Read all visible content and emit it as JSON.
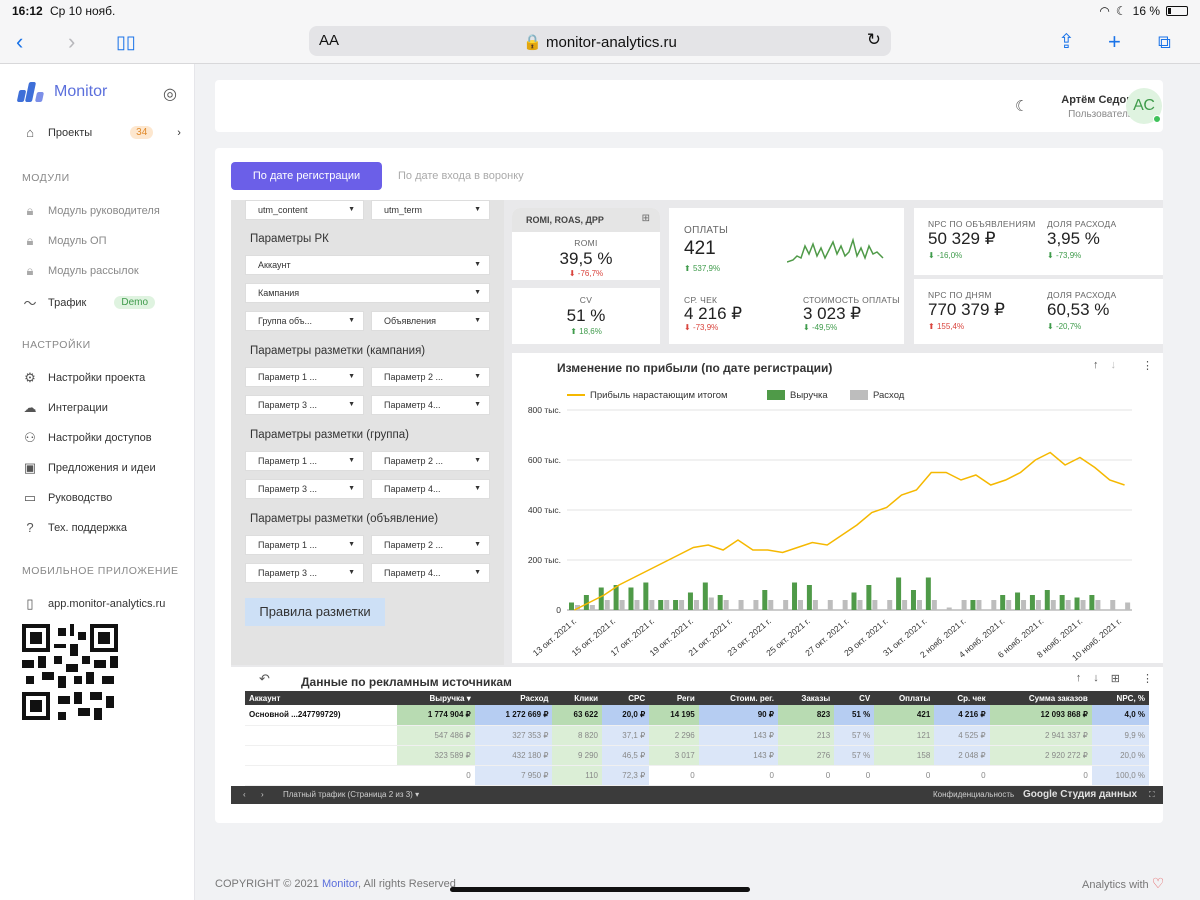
{
  "status": {
    "time": "16:12",
    "date": "Ср 10 нояб.",
    "battery": "16 %"
  },
  "browser": {
    "aa": "AA",
    "url": "monitor-analytics.ru"
  },
  "sidebar": {
    "logo": "Monitor",
    "projects": {
      "label": "Проекты",
      "count": "34"
    },
    "modules_title": "МОДУЛИ",
    "modules": [
      {
        "label": "Модуль руководителя"
      },
      {
        "label": "Модуль ОП"
      },
      {
        "label": "Модуль рассылок"
      },
      {
        "label": "Трафик",
        "badge": "Demo"
      }
    ],
    "settings_title": "НАСТРОЙКИ",
    "settings": [
      {
        "label": "Настройки проекта"
      },
      {
        "label": "Интеграции"
      },
      {
        "label": "Настройки доступов"
      },
      {
        "label": "Предложения и идеи"
      },
      {
        "label": "Руководство"
      },
      {
        "label": "Тех. поддержка"
      }
    ],
    "mobile_title": "МОБИЛЬНОЕ ПРИЛОЖЕНИЕ",
    "mobile_link": "app.monitor-analytics.ru"
  },
  "header": {
    "user_name": "Артём Седов",
    "user_role": "Пользователь",
    "avatar": "АС"
  },
  "tabs": {
    "active": "По дате регистрации",
    "inactive": "По дате входа в воронку"
  },
  "filters": {
    "top": [
      "utm_content",
      "utm_term"
    ],
    "rk_title": "Параметры РК",
    "rk": [
      "Аккаунт",
      "Кампания",
      "Группа объ...",
      "Объявления"
    ],
    "camp_title": "Параметры разметки (кампания)",
    "group_title": "Параметры разметки (группа)",
    "ad_title": "Параметры разметки (объявление)",
    "params": [
      "Параметр 1 ...",
      "Параметр 2 ...",
      "Параметр 3 ...",
      "Параметр 4..."
    ],
    "rules_button": "Правила разметки"
  },
  "kpis": {
    "romi_head": "ROMI, ROAS, ДРР",
    "romi": {
      "label": "ROMI",
      "value": "39,5 %",
      "delta": "-76,7%"
    },
    "cv": {
      "label": "CV",
      "value": "51 %",
      "delta": "18,6%"
    },
    "payments": {
      "label": "ОПЛАТЫ",
      "value": "421",
      "delta": "537,9%"
    },
    "avg_check": {
      "label": "СР. ЧЕК",
      "value": "4 216 ₽",
      "delta": "-73,9%"
    },
    "payment_cost": {
      "label": "СТОИМОСТЬ ОПЛАТЫ",
      "value": "3 023 ₽",
      "delta": "-49,5%"
    },
    "npc_ads": {
      "label": "NPC ПО ОБЪЯВЛЕНИЯМ",
      "value": "50 329 ₽",
      "delta": "-16,0%"
    },
    "share1": {
      "label": "ДОЛЯ РАСХОДА",
      "value": "3,95 %",
      "delta": "-73,9%"
    },
    "npc_days": {
      "label": "NPC ПО ДНЯМ",
      "value": "770 379 ₽",
      "delta": "155,4%"
    },
    "share2": {
      "label": "ДОЛЯ РАСХОДА",
      "value": "60,53 %",
      "delta": "-20,7%"
    }
  },
  "chart_data": {
    "type": "bar",
    "title": "Изменение по прибыли (по дате регистрации)",
    "legend": [
      "Прибыль нарастающим итогом",
      "Выручка",
      "Расход"
    ],
    "y_ticks": [
      "800 тыс.",
      "600 тыс.",
      "400 тыс.",
      "200 тыс.",
      "0"
    ],
    "ylim": [
      0,
      800000
    ],
    "x_tick_labels": [
      "13 окт. 2021 г.",
      "15 окт. 2021 г.",
      "17 окт. 2021 г.",
      "19 окт. 2021 г.",
      "21 окт. 2021 г.",
      "23 окт. 2021 г.",
      "25 окт. 2021 г.",
      "27 окт. 2021 г.",
      "29 окт. 2021 г.",
      "31 окт. 2021 г.",
      "2 нояб. 2021 г.",
      "4 нояб. 2021 г.",
      "6 нояб. 2021 г.",
      "8 нояб. 2021 г.",
      "10 нояб. 2021 г."
    ],
    "series": [
      {
        "name": "Прибыль нарастающим итогом",
        "type": "line",
        "color": "#f5b800",
        "values": [
          0,
          30000,
          60000,
          100000,
          130000,
          160000,
          190000,
          220000,
          250000,
          260000,
          240000,
          280000,
          240000,
          240000,
          230000,
          250000,
          270000,
          260000,
          300000,
          340000,
          390000,
          410000,
          460000,
          480000,
          550000,
          550000,
          520000,
          540000,
          500000,
          520000,
          550000,
          600000,
          630000,
          580000,
          610000,
          570000,
          520000,
          500000
        ]
      },
      {
        "name": "Выручка",
        "type": "bar",
        "color": "#4f9a48",
        "values": [
          30000,
          60000,
          90000,
          100000,
          90000,
          110000,
          40000,
          40000,
          70000,
          110000,
          60000,
          0,
          0,
          80000,
          0,
          110000,
          100000,
          0,
          0,
          70000,
          100000,
          0,
          130000,
          80000,
          130000,
          0,
          0,
          40000,
          0,
          60000,
          70000,
          60000,
          80000,
          60000,
          50000,
          60000,
          0,
          0
        ]
      },
      {
        "name": "Расход",
        "type": "bar",
        "color": "#bdbdbd",
        "values": [
          20000,
          20000,
          40000,
          40000,
          40000,
          40000,
          40000,
          40000,
          40000,
          50000,
          40000,
          40000,
          40000,
          40000,
          40000,
          40000,
          40000,
          40000,
          40000,
          40000,
          40000,
          40000,
          40000,
          40000,
          40000,
          10000,
          40000,
          40000,
          40000,
          40000,
          40000,
          40000,
          40000,
          40000,
          40000,
          40000,
          40000,
          30000
        ]
      }
    ]
  },
  "table": {
    "title": "Данные по рекламным источникам",
    "columns": [
      "Аккаунт",
      "Выручка ▾",
      "Расход",
      "Клики",
      "CPC",
      "Реги",
      "Стоим. рег.",
      "Заказы",
      "CV",
      "Оплаты",
      "Ср. чек",
      "Сумма заказов",
      "NPC, %"
    ],
    "rows": [
      [
        "Основной ...247799729)",
        "1 774 904 ₽",
        "1 272 669 ₽",
        "63 622",
        "20,0 ₽",
        "14 195",
        "90 ₽",
        "823",
        "51 %",
        "421",
        "4 216 ₽",
        "12 093 868 ₽",
        "4,0 %"
      ],
      [
        "",
        "547 486 ₽",
        "327 353 ₽",
        "8 820",
        "37,1 ₽",
        "2 296",
        "143 ₽",
        "213",
        "57 %",
        "121",
        "4 525 ₽",
        "2 941 337 ₽",
        "9,9 %"
      ],
      [
        "",
        "323 589 ₽",
        "432 180 ₽",
        "9 290",
        "46,5 ₽",
        "3 017",
        "143 ₽",
        "276",
        "57 %",
        "158",
        "2 048 ₽",
        "2 920 272 ₽",
        "20,0 %"
      ],
      [
        "",
        "0",
        "7 950 ₽",
        "110",
        "72,3 ₽",
        "0",
        "0",
        "0",
        "0",
        "0",
        "0",
        "0",
        "100,0 %"
      ]
    ],
    "pager": "Платный трафик (Страница 2 из 3)",
    "privacy": "Конфиденциальность",
    "brand": "Google Студия данных"
  },
  "footer": {
    "copyright": "COPYRIGHT © 2021 ",
    "brand": "Monitor",
    "rights": ", All rights Reserved",
    "right": "Analytics with"
  }
}
